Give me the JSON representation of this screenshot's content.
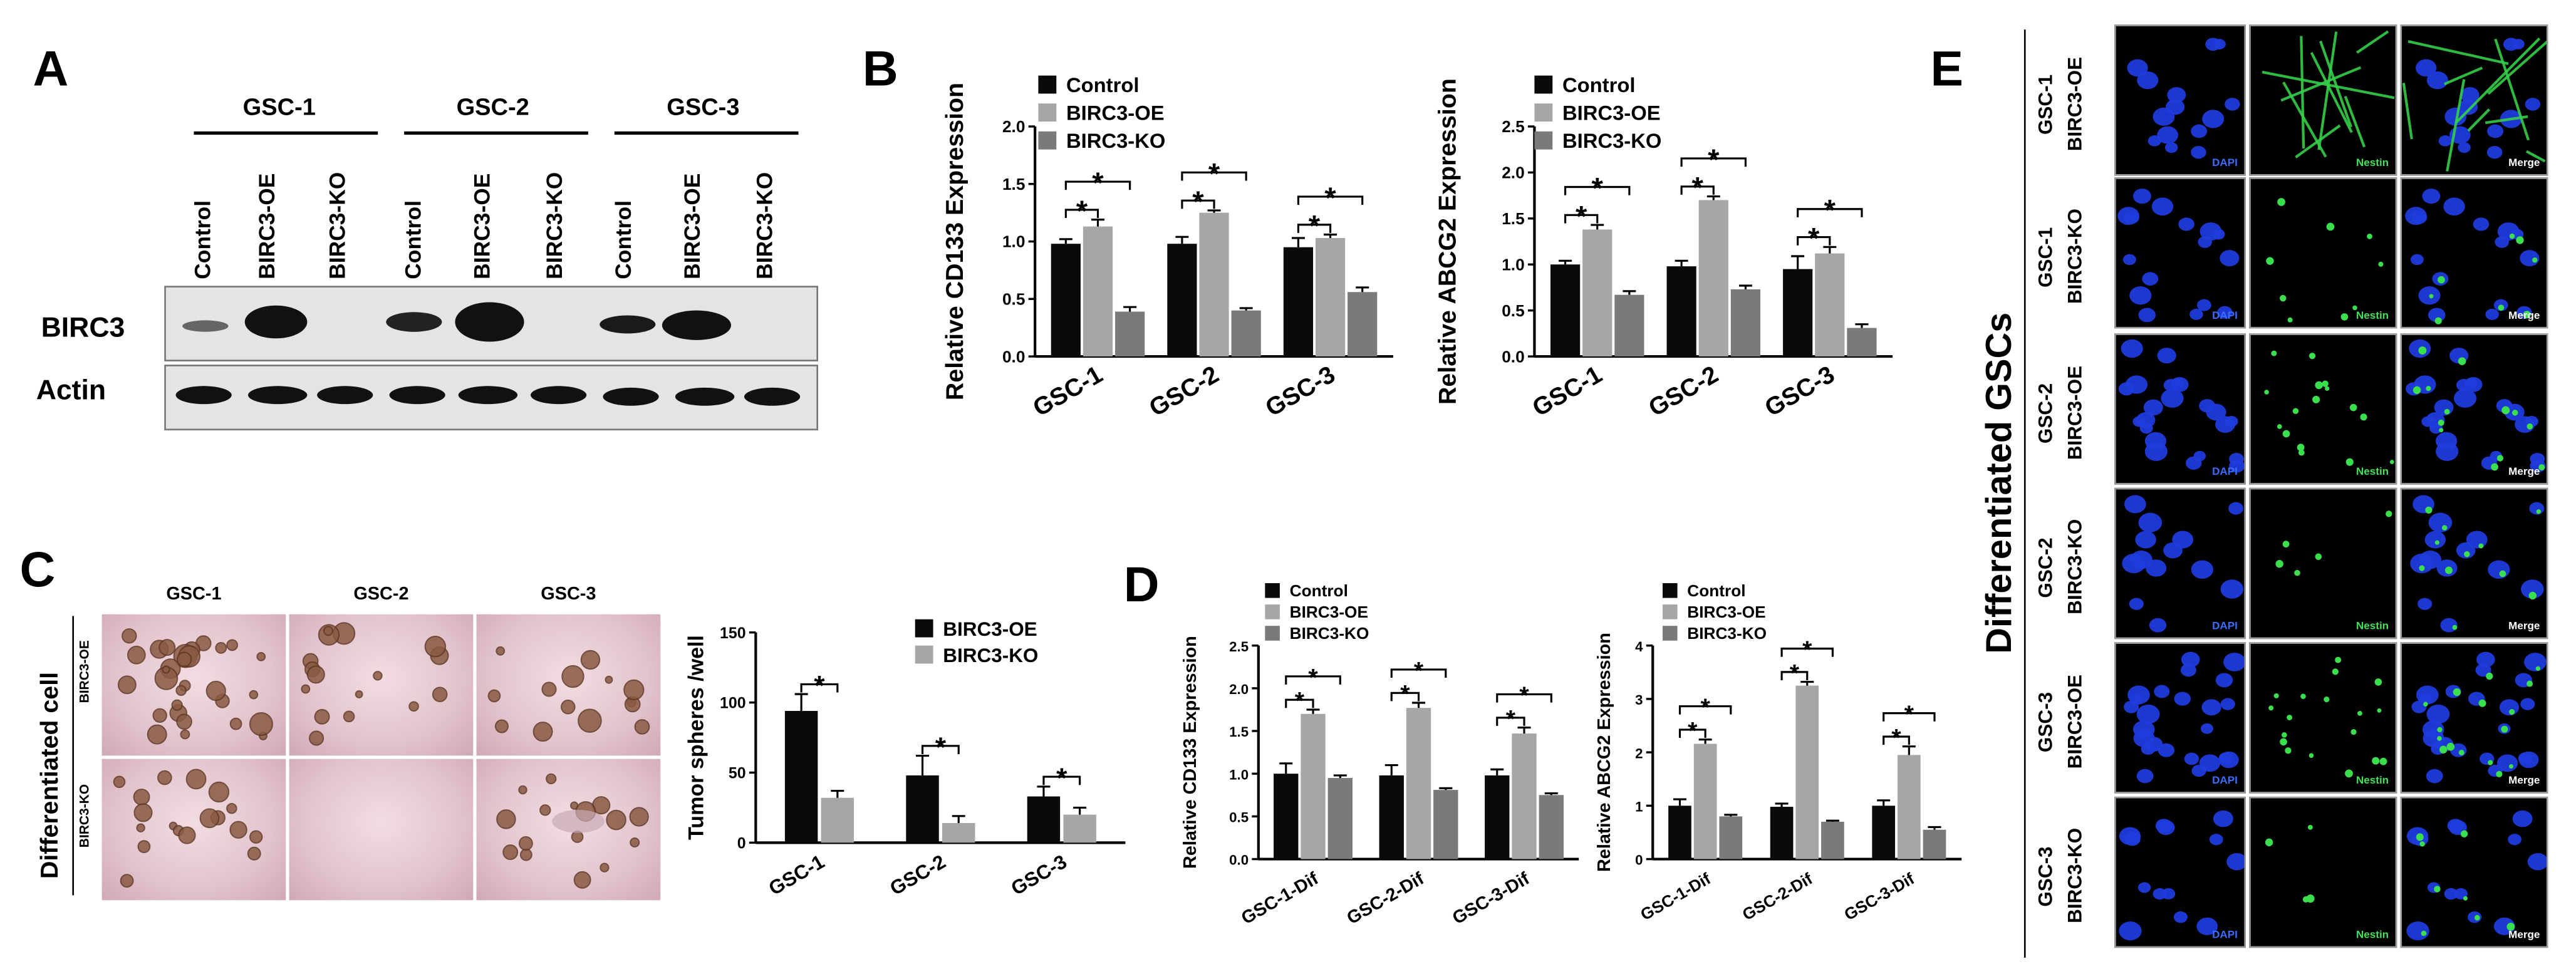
{
  "panel_labels": {
    "a": "A",
    "b": "B",
    "c": "C",
    "d": "D",
    "e": "E"
  },
  "blot": {
    "groups": [
      "GSC-1",
      "GSC-2",
      "GSC-3"
    ],
    "lanes": [
      "Control",
      "BIRC3-OE",
      "BIRC3-KO",
      "Control",
      "BIRC3-OE",
      "BIRC3-KO",
      "Control",
      "BIRC3-OE",
      "BIRC3-KO"
    ],
    "rows": [
      "BIRC3",
      "Actin"
    ]
  },
  "panel_c": {
    "photo_cols": [
      "GSC-1",
      "GSC-2",
      "GSC-3"
    ],
    "photo_rows": [
      "BIRC3-OE",
      "BIRC3-KO"
    ],
    "side_label": "Differentiated cell"
  },
  "panel_e": {
    "side_label": "Differentiated GSCs",
    "rows": [
      {
        "line1": "GSC-1",
        "line2": "BIRC3-OE"
      },
      {
        "line1": "GSC-1",
        "line2": "BIRC3-KO"
      },
      {
        "line1": "GSC-2",
        "line2": "BIRC3-OE"
      },
      {
        "line1": "GSC-2",
        "line2": "BIRC3-KO"
      },
      {
        "line1": "GSC-3",
        "line2": "BIRC3-OE"
      },
      {
        "line1": "GSC-3",
        "line2": "BIRC3-KO"
      }
    ],
    "channels": [
      "DAPI",
      "Nestin",
      "Merge"
    ]
  },
  "chart_data": [
    {
      "id": "b1",
      "type": "bar",
      "ylabel": "Relative CD133 Expression",
      "xlabel": "",
      "categories": [
        "GSC-1",
        "GSC-2",
        "GSC-3"
      ],
      "ylim": [
        0,
        2.0
      ],
      "yticks": [
        "0.0",
        "0.5",
        "1.0",
        "1.5",
        "2.0"
      ],
      "series": [
        {
          "name": "Control",
          "values": [
            0.98,
            0.98,
            0.95
          ],
          "err": [
            0.04,
            0.06,
            0.08
          ]
        },
        {
          "name": "BIRC3-OE",
          "values": [
            1.13,
            1.25,
            1.03
          ],
          "err": [
            0.06,
            0.02,
            0.03
          ]
        },
        {
          "name": "BIRC3-KO",
          "values": [
            0.39,
            0.4,
            0.56
          ],
          "err": [
            0.04,
            0.02,
            0.04
          ]
        }
      ],
      "significance": "*"
    },
    {
      "id": "b2",
      "type": "bar",
      "ylabel": "Relative ABCG2 Expression",
      "xlabel": "",
      "categories": [
        "GSC-1",
        "GSC-2",
        "GSC-3"
      ],
      "ylim": [
        0,
        2.5
      ],
      "yticks": [
        "0.0",
        "0.5",
        "1.0",
        "1.5",
        "2.0",
        "2.5"
      ],
      "series": [
        {
          "name": "Control",
          "values": [
            1.0,
            0.98,
            0.95
          ],
          "err": [
            0.04,
            0.06,
            0.14
          ]
        },
        {
          "name": "BIRC3-OE",
          "values": [
            1.38,
            1.7,
            1.12
          ],
          "err": [
            0.05,
            0.04,
            0.07
          ]
        },
        {
          "name": "BIRC3-KO",
          "values": [
            0.67,
            0.73,
            0.31
          ],
          "err": [
            0.04,
            0.04,
            0.04
          ]
        }
      ],
      "significance": "*"
    },
    {
      "id": "c",
      "type": "bar",
      "ylabel": "Tumor spheres /well",
      "xlabel": "",
      "categories": [
        "GSC-1",
        "GSC-2",
        "GSC-3"
      ],
      "ylim": [
        0,
        150
      ],
      "yticks": [
        "0",
        "50",
        "100",
        "150"
      ],
      "series": [
        {
          "name": "BIRC3-OE",
          "values": [
            94,
            48,
            33
          ],
          "err": [
            12,
            14,
            7
          ]
        },
        {
          "name": "BIRC3-KO",
          "values": [
            32,
            14,
            20
          ],
          "err": [
            5,
            5,
            5
          ]
        }
      ],
      "significance": "*"
    },
    {
      "id": "d1",
      "type": "bar",
      "ylabel": "Relative CD133 Expression",
      "xlabel": "",
      "categories": [
        "GSC-1-Dif",
        "GSC-2-Dif",
        "GSC-3-Dif"
      ],
      "ylim": [
        0,
        2.5
      ],
      "yticks": [
        "0.0",
        "0.5",
        "1.0",
        "1.5",
        "2.0",
        "2.5"
      ],
      "series": [
        {
          "name": "Control",
          "values": [
            1.0,
            0.98,
            0.98
          ],
          "err": [
            0.12,
            0.12,
            0.07
          ]
        },
        {
          "name": "BIRC3-OE",
          "values": [
            1.7,
            1.77,
            1.47
          ],
          "err": [
            0.05,
            0.06,
            0.07
          ]
        },
        {
          "name": "BIRC3-KO",
          "values": [
            0.95,
            0.81,
            0.75
          ],
          "err": [
            0.03,
            0.02,
            0.02
          ]
        }
      ],
      "significance": "*"
    },
    {
      "id": "d2",
      "type": "bar",
      "ylabel": "Relative ABCG2 Expression",
      "xlabel": "",
      "categories": [
        "GSC-1-Dif",
        "GSC-2-Dif",
        "GSC-3-Dif"
      ],
      "ylim": [
        0,
        4
      ],
      "yticks": [
        "0",
        "1",
        "2",
        "3",
        "4"
      ],
      "series": [
        {
          "name": "Control",
          "values": [
            1.0,
            0.98,
            1.0
          ],
          "err": [
            0.12,
            0.06,
            0.1
          ]
        },
        {
          "name": "BIRC3-OE",
          "values": [
            2.16,
            3.25,
            1.95
          ],
          "err": [
            0.08,
            0.07,
            0.16
          ]
        },
        {
          "name": "BIRC3-KO",
          "values": [
            0.8,
            0.7,
            0.55
          ],
          "err": [
            0.03,
            0.02,
            0.05
          ]
        }
      ],
      "significance": "*"
    }
  ]
}
